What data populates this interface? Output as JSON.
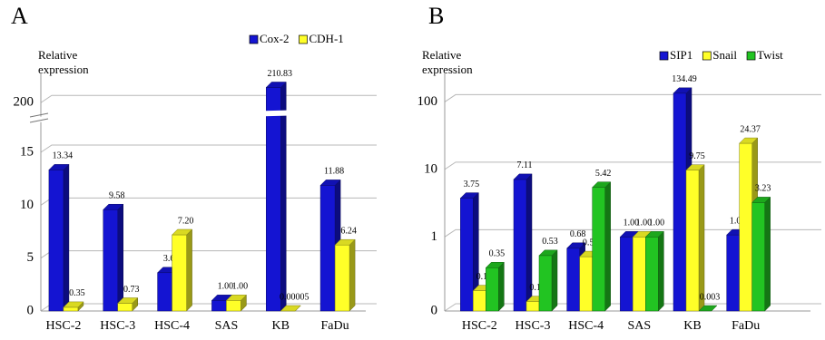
{
  "chart_data": [
    {
      "type": "bar",
      "panel_label": "A",
      "ylabel": [
        "Relative",
        "expression"
      ],
      "categories": [
        "HSC-2",
        "HSC-3",
        "HSC-4",
        "SAS",
        "KB",
        "FaDu"
      ],
      "series": [
        {
          "name": "Cox-2",
          "color": "#1414d2",
          "values": [
            13.34,
            9.58,
            3.62,
            1.0,
            210.83,
            11.88
          ],
          "value_labels": [
            "13.34",
            "9.58",
            "3.62",
            "1.00",
            "210.83",
            "11.88"
          ]
        },
        {
          "name": "CDH-1",
          "color": "#ffff28",
          "values": [
            0.35,
            0.73,
            7.2,
            1.0,
            5e-05,
            6.24
          ],
          "value_labels": [
            "0.35",
            "0.73",
            "7.20",
            "1.00",
            "0.00005",
            "6.24"
          ]
        }
      ],
      "ylim": [
        0,
        215
      ],
      "ybreak": [
        18,
        195
      ],
      "yticks": [
        0,
        5,
        10,
        15,
        200
      ],
      "grid": true,
      "legend": "top-right"
    },
    {
      "type": "bar",
      "panel_label": "B",
      "ylabel": [
        "Relative",
        "expression"
      ],
      "categories": [
        "HSC-2",
        "HSC-3",
        "HSC-4",
        "SAS",
        "KB",
        "FaDu"
      ],
      "series": [
        {
          "name": "SIP1",
          "color": "#1414d2",
          "values": [
            3.75,
            7.11,
            0.68,
            1.0,
            134.49,
            1.07
          ],
          "value_labels": [
            "3.75",
            "7.11",
            "0.68",
            "1.00",
            "134.49",
            "1.07"
          ]
        },
        {
          "name": "Snail",
          "color": "#ffff28",
          "values": [
            0.16,
            0.11,
            0.51,
            1.0,
            9.75,
            24.37
          ],
          "value_labels": [
            "0.16",
            "0.11",
            "0.51",
            "1.00",
            "9.75",
            "24.37"
          ]
        },
        {
          "name": "Twist",
          "color": "#22c422",
          "values": [
            0.35,
            0.53,
            5.42,
            1.0,
            0.003,
            3.23
          ],
          "value_labels": [
            "0.35",
            "0.53",
            "5.42",
            "1.00",
            "0.003",
            "3.23"
          ]
        }
      ],
      "yscale": "log",
      "ylim": [
        0.08,
        200
      ],
      "yticks": [
        {
          "value": 0.08,
          "label": "0"
        },
        1,
        10,
        100
      ],
      "grid": true,
      "legend": "top-right"
    }
  ]
}
